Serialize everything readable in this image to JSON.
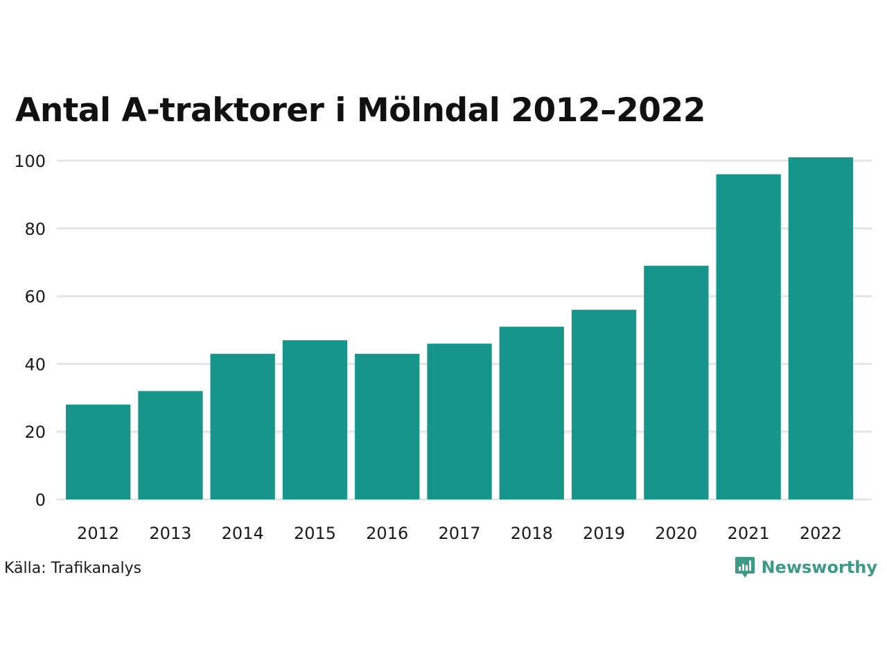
{
  "colors": {
    "bar": "#16968a",
    "grid": "#e4e4e4",
    "brand": "#3d9a86"
  },
  "source": "Källa: Trafikanalys",
  "brand": {
    "name": "Newsworthy",
    "icon": "newsworthy-logo-icon"
  },
  "chart_data": {
    "type": "bar",
    "title": "Antal A-traktorer i Mölndal 2012–2022",
    "categories": [
      "2012",
      "2013",
      "2014",
      "2015",
      "2016",
      "2017",
      "2018",
      "2019",
      "2020",
      "2021",
      "2022"
    ],
    "values": [
      28,
      32,
      43,
      47,
      43,
      46,
      51,
      56,
      69,
      96,
      101
    ],
    "xlabel": "",
    "ylabel": "",
    "ylim": [
      0,
      100
    ],
    "yticks": [
      0,
      20,
      40,
      60,
      80,
      100
    ],
    "grid": true
  }
}
